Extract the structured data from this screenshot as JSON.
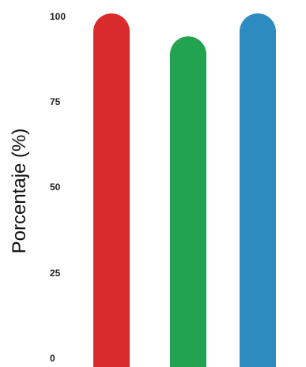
{
  "chart_data": {
    "type": "bar",
    "title": "",
    "xlabel": "",
    "ylabel": "Porcentaje (%)",
    "ylim": [
      0,
      100
    ],
    "yticks": [
      0,
      25,
      50,
      75,
      100
    ],
    "grid": false,
    "bar_style": "rounded-top",
    "categories": [
      "",
      "",
      ""
    ],
    "values": [
      100,
      93.5,
      100
    ],
    "colors": [
      "#d92b2b",
      "#22a34f",
      "#2e8bc0"
    ]
  }
}
